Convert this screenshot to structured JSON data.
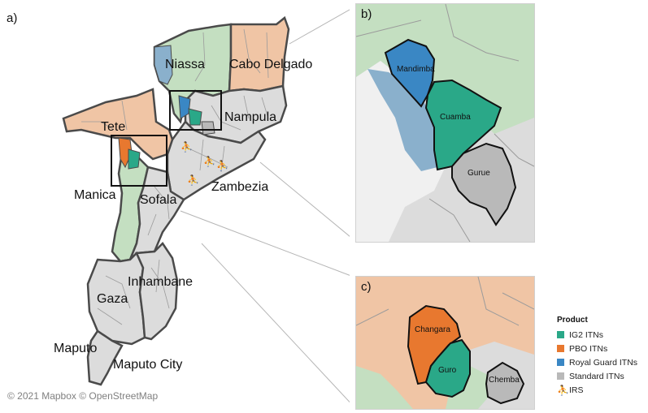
{
  "panel_labels": {
    "a": "a)",
    "b": "b)",
    "c": "c)"
  },
  "copyright": "© 2021 Mapbox © OpenStreetMap",
  "colors": {
    "ig2": "#2aa888",
    "pbo": "#e8782f",
    "royal_guard": "#3a87c4",
    "standard": "#b9b9b9",
    "background_standard": "#dcdcdc",
    "niassa_green": "#c4dfc1",
    "tan": "#f0c5a5",
    "steelblue_light": "#8ab0cc",
    "border": "#4a4a4a"
  },
  "provinces": {
    "niassa": "Niassa",
    "cabo_delgado": "Cabo Delgado",
    "nampula": "Nampula",
    "tete": "Tete",
    "zambezia": "Zambezia",
    "manica": "Manica",
    "sofala": "Sofala",
    "inhambane": "Inhambane",
    "gaza": "Gaza",
    "maputo": "Maputo",
    "maputo_city": "Maputo City"
  },
  "inset_b": {
    "mandimba": "Mandimba",
    "cuamba": "Cuamba",
    "gurue": "Gurue"
  },
  "inset_c": {
    "changara": "Changara",
    "guro": "Guro",
    "chemba": "Chemba"
  },
  "legend": {
    "title": "Product",
    "items": [
      {
        "label": "IG2 ITNs",
        "color": "#2aa888"
      },
      {
        "label": "PBO ITNs",
        "color": "#e8782f"
      },
      {
        "label": "Royal Guard ITNs",
        "color": "#3a87c4"
      },
      {
        "label": "Standard ITNs",
        "color": "#b9b9b9"
      }
    ],
    "irs_label": "IRS",
    "irs_icon": "spray-person-icon"
  }
}
